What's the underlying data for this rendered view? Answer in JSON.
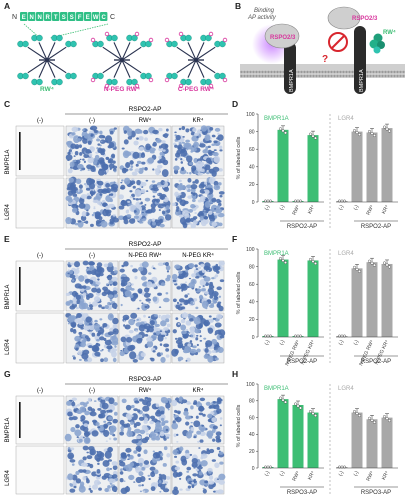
{
  "panel_letters": [
    "A",
    "B",
    "C",
    "D",
    "E",
    "F",
    "G",
    "H"
  ],
  "A": {
    "n_label": "N",
    "c_label": "C",
    "sequence": [
      "E",
      "N",
      "N",
      "R",
      "T",
      "S",
      "S",
      "F",
      "E",
      "W",
      "C"
    ],
    "captions": [
      "RW⁴",
      "N-PEG RW⁴",
      "C-PEG RW⁴"
    ]
  },
  "B": {
    "binding_text": [
      "Binding",
      "AP activity"
    ],
    "rspo_label": "RSPO2/3",
    "rw_label": "RW⁴",
    "receptor": "BMPR1A",
    "question": "?"
  },
  "C": {
    "top_header": "RSPO2-AP",
    "neg_col": "(-)",
    "cols": [
      "(-)",
      "RW⁴",
      "KR⁴"
    ],
    "rows": [
      "BMPR1A",
      "LGR4"
    ]
  },
  "E": {
    "top_header": "RSPO2-AP",
    "neg_col": "(-)",
    "cols": [
      "(-)",
      "N-PEG RW⁴",
      "N-PEG KR⁴"
    ],
    "rows": [
      "BMPR1A",
      "LGR4"
    ]
  },
  "G": {
    "top_header": "RSPO3-AP",
    "neg_col": "(-)",
    "cols": [
      "(-)",
      "RW⁴",
      "KR⁴"
    ],
    "rows": [
      "BMPR1A",
      "LGR4"
    ]
  },
  "colors": {
    "green": "#3dbe74",
    "gray": "#a8a8a8",
    "purple": "#d8369d",
    "teal": "#2fc3b0",
    "stain": "#4d6fae"
  },
  "chart_data": [
    {
      "panel": "D",
      "type": "bar",
      "ylabel": "% of labeled cells",
      "ylim": [
        0,
        100
      ],
      "yticks": [
        0,
        20,
        40,
        60,
        80,
        100
      ],
      "groups": [
        {
          "label": "BMPR1A",
          "color": "green",
          "tick_labels": [
            "(-)",
            "(-)",
            "RW⁴",
            "KR⁴"
          ]
        },
        {
          "label": "LGR4",
          "color": "gray",
          "tick_labels": [
            "(-)",
            "(-)",
            "RW⁴",
            "KR⁴"
          ]
        }
      ],
      "group_footers": [
        "RSPO2-AP",
        "RSPO2-AP"
      ],
      "series": [
        {
          "name": "BMPR1A",
          "values": [
            0,
            82,
            1,
            76
          ]
        },
        {
          "name": "LGR4",
          "values": [
            0,
            80,
            79,
            84
          ]
        }
      ]
    },
    {
      "panel": "F",
      "type": "bar",
      "ylabel": "% of labeled cells",
      "ylim": [
        0,
        100
      ],
      "yticks": [
        0,
        20,
        40,
        60,
        80,
        100
      ],
      "groups": [
        {
          "label": "BMPR1A",
          "color": "green",
          "tick_labels": [
            "(-)",
            "(-)",
            "N-PEG RW⁴",
            "N-PEG KR⁴"
          ]
        },
        {
          "label": "LGR4",
          "color": "gray",
          "tick_labels": [
            "(-)",
            "(-)",
            "N-PEG RW⁴",
            "N-PEG KR⁴"
          ]
        }
      ],
      "group_footers": [
        "RSPO2-AP",
        "RSPO2-AP"
      ],
      "series": [
        {
          "name": "BMPR1A",
          "values": [
            0,
            88,
            0,
            87
          ]
        },
        {
          "name": "LGR4",
          "values": [
            0,
            78,
            85,
            83
          ]
        }
      ]
    },
    {
      "panel": "H",
      "type": "bar",
      "ylabel": "% of labeled cells",
      "ylim": [
        0,
        100
      ],
      "yticks": [
        0,
        20,
        40,
        60,
        80,
        100
      ],
      "groups": [
        {
          "label": "BMPR1A",
          "color": "green",
          "tick_labels": [
            "(-)",
            "(-)",
            "RW⁴",
            "KR⁴"
          ]
        },
        {
          "label": "LGR4",
          "color": "gray",
          "tick_labels": [
            "(-)",
            "(-)",
            "RW⁴",
            "KR⁴"
          ]
        }
      ],
      "group_footers": [
        "RSPO3-AP",
        "RSPO3-AP"
      ],
      "series": [
        {
          "name": "BMPR1A",
          "values": [
            2,
            82,
            75,
            66
          ]
        },
        {
          "name": "LGR4",
          "values": [
            0,
            66,
            58,
            60
          ]
        }
      ]
    }
  ]
}
